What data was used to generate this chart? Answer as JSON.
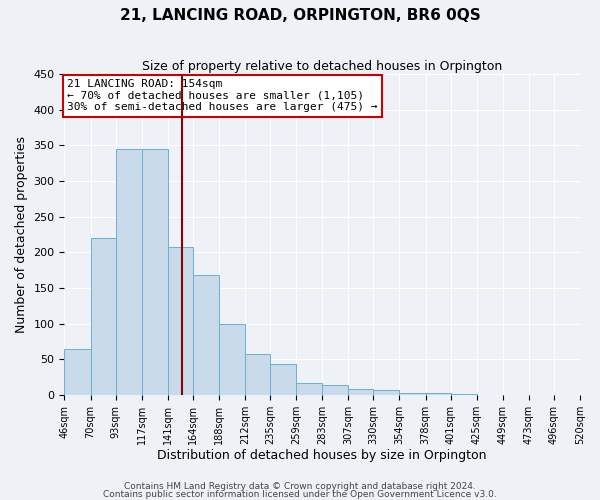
{
  "title": "21, LANCING ROAD, ORPINGTON, BR6 0QS",
  "subtitle": "Size of property relative to detached houses in Orpington",
  "xlabel": "Distribution of detached houses by size in Orpington",
  "ylabel": "Number of detached properties",
  "bar_values": [
    65,
    220,
    345,
    345,
    207,
    168,
    100,
    57,
    43,
    16,
    14,
    8,
    7,
    3,
    2,
    1
  ],
  "bin_edges": [
    46,
    70,
    93,
    117,
    141,
    164,
    188,
    212,
    235,
    259,
    283,
    307,
    330,
    354,
    378,
    401,
    425,
    449,
    473,
    496,
    520
  ],
  "tick_labels": [
    "46sqm",
    "70sqm",
    "93sqm",
    "117sqm",
    "141sqm",
    "164sqm",
    "188sqm",
    "212sqm",
    "235sqm",
    "259sqm",
    "283sqm",
    "307sqm",
    "330sqm",
    "354sqm",
    "378sqm",
    "401sqm",
    "425sqm",
    "449sqm",
    "473sqm",
    "496sqm",
    "520sqm"
  ],
  "bar_color": "#c9daea",
  "bar_edge_color": "#6baed6",
  "vline_x": 154,
  "vline_color": "#8b0000",
  "annotation_title": "21 LANCING ROAD: 154sqm",
  "annotation_line1": "← 70% of detached houses are smaller (1,105)",
  "annotation_line2": "30% of semi-detached houses are larger (475) →",
  "annotation_box_color": "#cc0000",
  "ylim": [
    0,
    450
  ],
  "footer1": "Contains HM Land Registry data © Crown copyright and database right 2024.",
  "footer2": "Contains public sector information licensed under the Open Government Licence v3.0.",
  "background_color": "#eef2f7",
  "title_fontsize": 11,
  "subtitle_fontsize": 9,
  "ylabel_fontsize": 9,
  "xlabel_fontsize": 9,
  "tick_fontsize": 7,
  "annotation_fontsize": 8,
  "footer_fontsize": 6.5
}
